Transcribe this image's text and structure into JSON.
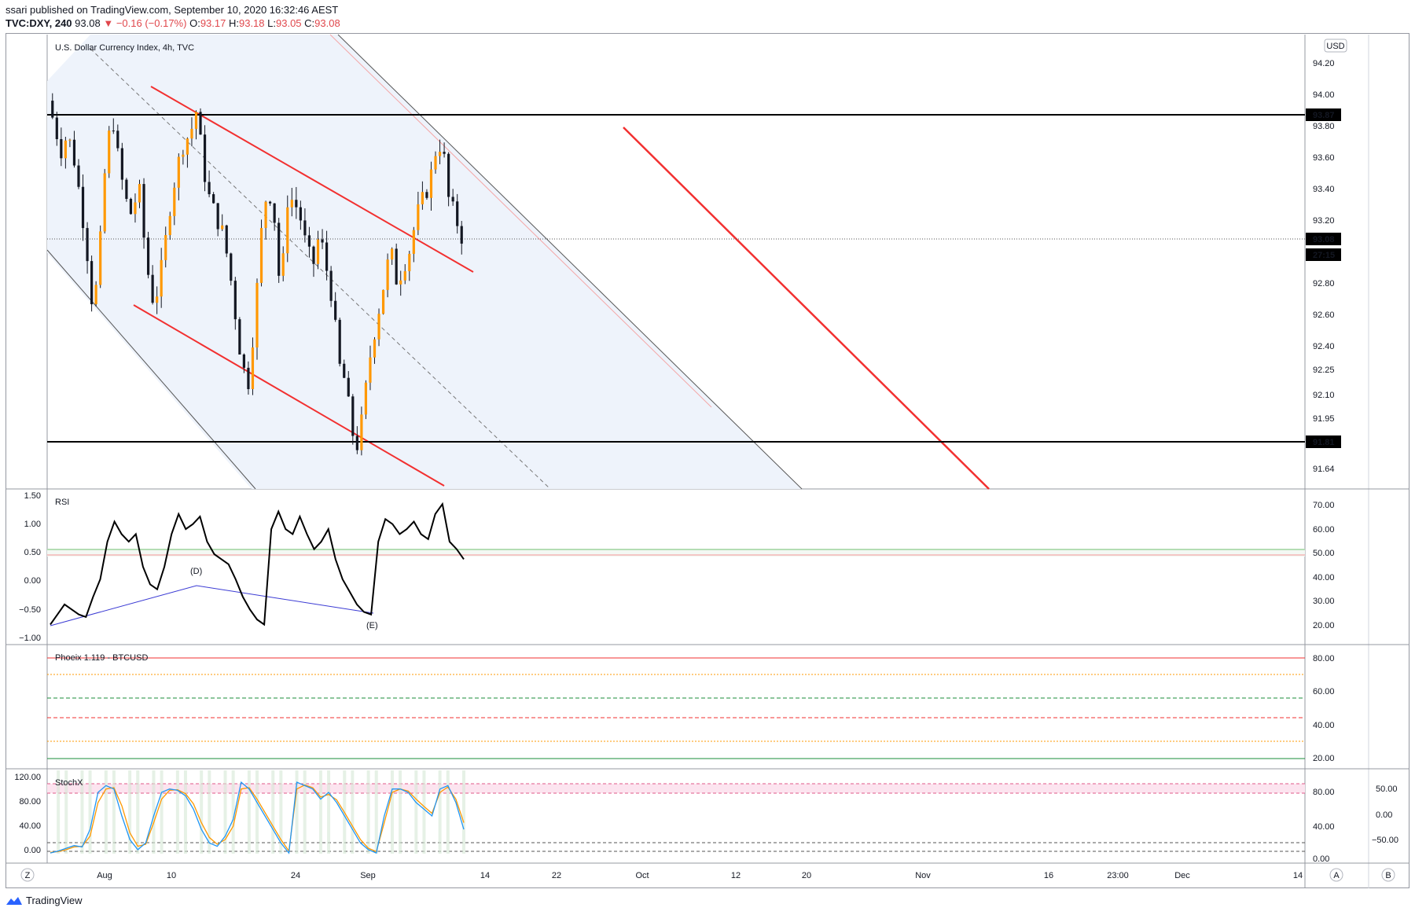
{
  "header": {
    "published_line": "ssari published on TradingView.com, September 10, 2020 16:32:46 AEST",
    "symbol": "TVC:DXY, 240",
    "last": "93.08",
    "change": "▼ −0.16 (−0.17%)",
    "o_label": "O:",
    "o_val": "93.17",
    "h_label": "H:",
    "h_val": "93.18",
    "l_label": "L:",
    "l_val": "93.05",
    "c_label": "C:",
    "c_val": "93.08"
  },
  "main": {
    "title": "U.S. Dollar Currency Index, 4h, TVC",
    "currency_button": "USD",
    "y_ticks": [
      "94.20",
      "94.00",
      "93.80",
      "93.60",
      "93.40",
      "93.20",
      "92.80",
      "92.60",
      "92.40",
      "92.25",
      "92.10",
      "91.95",
      "91.64"
    ],
    "tags": {
      "upper_level": "93.87",
      "last_price": "93.08",
      "countdown": "27:15",
      "lower_level": "91.81"
    }
  },
  "rsi_pane": {
    "title": "RSI",
    "left_ticks": [
      "1.50",
      "1.00",
      "0.50",
      "0.00",
      "−0.50",
      "−1.00"
    ],
    "right_ticks": [
      "70.00",
      "60.00",
      "50.00",
      "40.00",
      "30.00",
      "20.00"
    ],
    "wave_labels": [
      "(D)",
      "(E)"
    ]
  },
  "phoeix_pane": {
    "title": "Phoeix 1.119 - BTCUSD",
    "right_ticks": [
      "80.00",
      "60.00",
      "40.00",
      "20.00"
    ]
  },
  "stoch_pane": {
    "title": "StochX",
    "left_ticks": [
      "120.00",
      "80.00",
      "40.00",
      "0.00"
    ],
    "right_ticks": [
      "80.00",
      "40.00",
      "0.00"
    ],
    "far_right_ticks": [
      "50.00",
      "0.00",
      "−50.00"
    ]
  },
  "time_axis": {
    "labels": [
      "Aug",
      "10",
      "24",
      "Sep",
      "14",
      "22",
      "Oct",
      "12",
      "20",
      "Nov",
      "16",
      "23:00",
      "Dec",
      "14"
    ],
    "left_button": "Z",
    "auto_button": "A",
    "b_button": "B"
  },
  "footer": {
    "brand": "TradingView"
  },
  "colors": {
    "up": "#ff9800",
    "down": "#131722",
    "channel_fill": "#eef3fb",
    "red": "#f23030",
    "rsi": "#000000",
    "divergence": "#3b3bd4",
    "stoch_k": "#2196f3",
    "stoch_d": "#ff9800"
  },
  "chart_data": [
    {
      "type": "candlestick",
      "title": "U.S. Dollar Currency Index, 4h, TVC",
      "ylim": [
        91.55,
        94.3
      ],
      "horizontal_levels": [
        93.87,
        91.81
      ],
      "last_price": 93.08,
      "close_path": [
        93.9,
        93.75,
        93.6,
        93.7,
        93.55,
        93.3,
        93.0,
        92.6,
        93.0,
        93.6,
        93.8,
        93.5,
        93.3,
        93.2,
        93.4,
        93.0,
        92.7,
        92.75,
        93.0,
        93.3,
        93.5,
        93.65,
        93.7,
        93.85,
        93.5,
        93.3,
        93.2,
        93.1,
        92.9,
        92.6,
        92.3,
        92.2,
        92.6,
        93.1,
        93.4,
        93.2,
        92.7,
        93.3,
        93.3,
        93.2,
        93.0,
        92.9,
        93.1,
        92.9,
        92.7,
        92.3,
        92.2,
        91.9,
        91.8,
        92.1,
        92.4,
        92.6,
        92.8,
        93.0,
        92.8,
        92.9,
        93.0,
        93.2,
        93.3,
        93.4,
        93.6,
        93.65,
        93.3,
        93.2,
        93.08
      ]
    },
    {
      "type": "line",
      "title": "RSI",
      "ylim": [
        14,
        76
      ],
      "levels": [
        52,
        50
      ],
      "values": [
        22,
        26,
        30,
        28,
        26,
        25,
        33,
        40,
        55,
        63,
        58,
        55,
        58,
        45,
        38,
        36,
        45,
        58,
        66,
        60,
        62,
        65,
        55,
        50,
        48,
        46,
        40,
        33,
        28,
        24,
        22,
        60,
        67,
        60,
        58,
        65,
        58,
        52,
        55,
        60,
        48,
        40,
        35,
        30,
        27,
        26,
        55,
        64,
        62,
        58,
        60,
        63,
        58,
        56,
        66,
        70,
        55,
        52,
        48
      ]
    },
    {
      "type": "line",
      "title": "StochX",
      "ylim": [
        -10,
        130
      ],
      "series": [
        {
          "name": "K",
          "values": [
            5,
            8,
            12,
            16,
            14,
            40,
            95,
            105,
            100,
            60,
            25,
            10,
            20,
            60,
            95,
            100,
            98,
            90,
            70,
            40,
            20,
            15,
            30,
            55,
            110,
            100,
            80,
            60,
            40,
            20,
            5,
            110,
            105,
            100,
            85,
            95,
            80,
            60,
            40,
            20,
            10,
            5,
            60,
            100,
            100,
            95,
            80,
            70,
            60,
            100,
            105,
            80,
            40
          ]
        },
        {
          "name": "D",
          "values": [
            6,
            7,
            10,
            14,
            15,
            30,
            80,
            100,
            102,
            75,
            35,
            15,
            18,
            50,
            85,
            98,
            99,
            93,
            78,
            50,
            28,
            18,
            25,
            45,
            100,
            102,
            85,
            65,
            45,
            25,
            8,
            100,
            106,
            102,
            88,
            92,
            84,
            65,
            45,
            25,
            12,
            7,
            50,
            95,
            100,
            97,
            85,
            74,
            64,
            95,
            103,
            85,
            50
          ]
        }
      ],
      "levels": [
        100,
        90,
        8,
        0
      ]
    }
  ]
}
